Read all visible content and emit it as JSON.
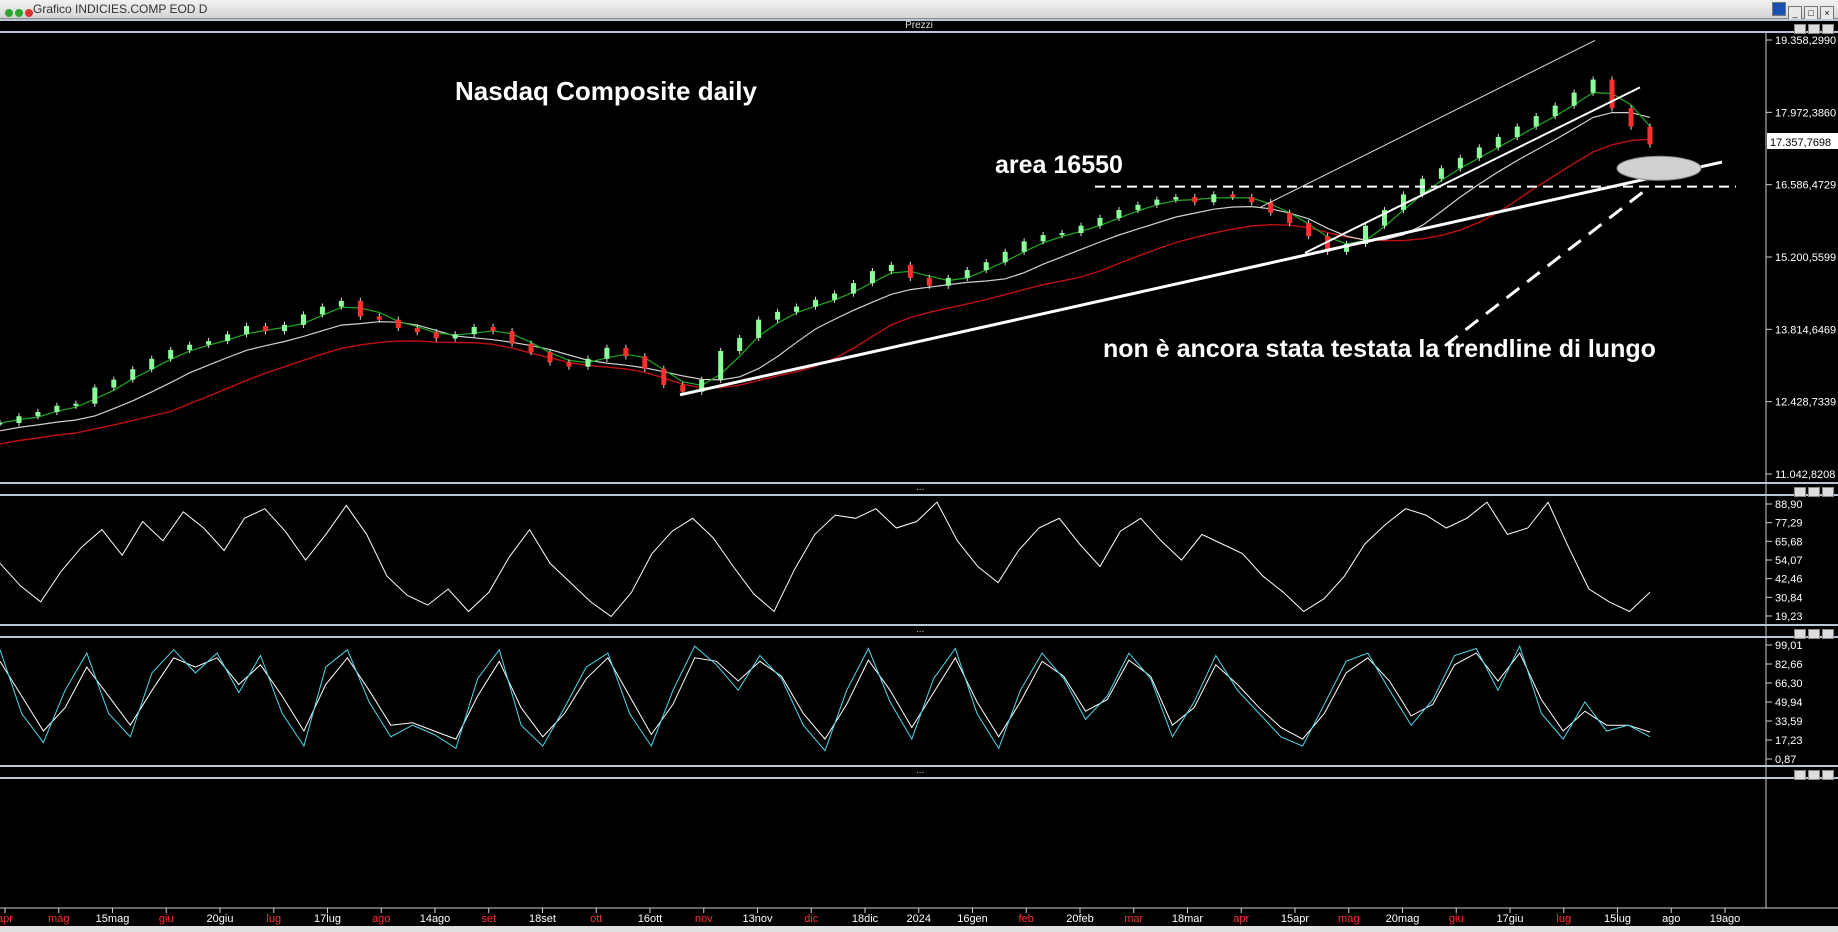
{
  "window": {
    "title": "Grafico INDICIES.COMP EOD D",
    "price_pane_label": "Prezzi"
  },
  "chart_data": [
    {
      "type": "candlestick",
      "title": "Nasdaq Composite daily",
      "y_ticks": [
        "19.358,2990",
        "17.972,3860",
        "16.586,4729",
        "15.200,5599",
        "13.814,6469",
        "12.428,7339",
        "11.042,8208"
      ],
      "ylim": [
        11042.8208,
        19358.299
      ],
      "last_price_label": "17.357,7698",
      "x_ticks": [
        {
          "label": "apr",
          "red": true
        },
        {
          "label": "mag",
          "red": true
        },
        {
          "label": "15mag",
          "red": false
        },
        {
          "label": "giu",
          "red": true
        },
        {
          "label": "20giu",
          "red": false
        },
        {
          "label": "lug",
          "red": true
        },
        {
          "label": "17lug",
          "red": false
        },
        {
          "label": "ago",
          "red": true
        },
        {
          "label": "14ago",
          "red": false
        },
        {
          "label": "set",
          "red": true
        },
        {
          "label": "18set",
          "red": false
        },
        {
          "label": "ott",
          "red": true
        },
        {
          "label": "16ott",
          "red": false
        },
        {
          "label": "nov",
          "red": true
        },
        {
          "label": "13nov",
          "red": false
        },
        {
          "label": "dic",
          "red": true
        },
        {
          "label": "18dic",
          "red": false
        },
        {
          "label": "2024",
          "red": false
        },
        {
          "label": "16gen",
          "red": false
        },
        {
          "label": "feb",
          "red": true
        },
        {
          "label": "20feb",
          "red": false
        },
        {
          "label": "mar",
          "red": true
        },
        {
          "label": "18mar",
          "red": false
        },
        {
          "label": "apr",
          "red": true
        },
        {
          "label": "15apr",
          "red": false
        },
        {
          "label": "mag",
          "red": true
        },
        {
          "label": "20mag",
          "red": false
        },
        {
          "label": "giu",
          "red": true
        },
        {
          "label": "17giu",
          "red": false
        },
        {
          "label": "lug",
          "red": true
        },
        {
          "label": "15lug",
          "red": false
        },
        {
          "label": "ago",
          "red": false
        },
        {
          "label": "19ago",
          "red": false
        }
      ],
      "close_series": [
        12020,
        12150,
        12230,
        12350,
        12390,
        12700,
        12850,
        13050,
        13250,
        13420,
        13520,
        13590,
        13720,
        13880,
        13780,
        13900,
        14100,
        14250,
        14360,
        14060,
        14000,
        13840,
        13760,
        13640,
        13720,
        13860,
        13780,
        13540,
        13380,
        13180,
        13100,
        13250,
        13460,
        13300,
        13060,
        12750,
        12620,
        12850,
        13400,
        13650,
        14000,
        14150,
        14250,
        14380,
        14500,
        14700,
        14930,
        15050,
        14800,
        14650,
        14800,
        14950,
        15100,
        15300,
        15500,
        15620,
        15660,
        15800,
        15950,
        16100,
        16200,
        16300,
        16350,
        16250,
        16400,
        16350,
        16250,
        16050,
        15850,
        15600,
        15300,
        15450,
        15800,
        16100,
        16400,
        16700,
        16900,
        17100,
        17300,
        17500,
        17700,
        17900,
        18100,
        18350,
        18600,
        18050,
        17700,
        17357
      ],
      "annotations": [
        "area 16550",
        "non è ancora stata testata la trendline di lungo"
      ],
      "colors": {
        "bull": "#8aff9a",
        "bear": "#ff3030",
        "ma_short": "#1faa1f",
        "ma_mid": "#d0d0d0",
        "ma_long": "#c01010",
        "trendline": "#ffffff"
      }
    },
    {
      "type": "line",
      "name": "oscillator",
      "y_ticks": [
        "88,90",
        "77,29",
        "65,68",
        "54,07",
        "42,46",
        "30,84",
        "19,23"
      ],
      "ylim": [
        19.23,
        88.9
      ],
      "values": [
        52,
        38,
        28,
        47,
        62,
        73,
        57,
        78,
        66,
        84,
        74,
        60,
        80,
        86,
        72,
        54,
        70,
        88,
        70,
        44,
        32,
        26,
        36,
        22,
        34,
        56,
        73,
        52,
        40,
        28,
        19,
        34,
        58,
        72,
        80,
        68,
        50,
        33,
        22,
        48,
        70,
        82,
        80,
        86,
        74,
        78,
        90,
        66,
        50,
        40,
        60,
        74,
        80,
        64,
        50,
        72,
        80,
        66,
        54,
        70,
        64,
        58,
        44,
        34,
        22,
        30,
        44,
        64,
        76,
        86,
        82,
        74,
        80,
        90,
        70,
        74,
        90,
        62,
        36,
        28,
        22,
        34
      ]
    },
    {
      "type": "line",
      "name": "stochastic",
      "y_ticks": [
        "99,01",
        "82,66",
        "66,30",
        "49,94",
        "33,59",
        "17,23",
        "0,87"
      ],
      "ylim": [
        0.87,
        99.01
      ],
      "k_values": [
        95,
        40,
        15,
        60,
        92,
        40,
        20,
        75,
        95,
        75,
        92,
        58,
        90,
        40,
        12,
        80,
        95,
        50,
        20,
        30,
        22,
        10,
        70,
        95,
        30,
        12,
        45,
        80,
        92,
        40,
        12,
        60,
        98,
        82,
        60,
        90,
        70,
        30,
        8,
        60,
        96,
        50,
        18,
        70,
        96,
        40,
        10,
        60,
        92,
        70,
        35,
        55,
        92,
        70,
        20,
        50,
        90,
        60,
        40,
        20,
        12,
        48,
        85,
        92,
        60,
        30,
        52,
        90,
        96,
        60,
        98,
        40,
        18,
        50,
        25,
        30,
        20
      ],
      "d_values": [
        85,
        55,
        25,
        45,
        80,
        55,
        30,
        60,
        88,
        80,
        88,
        65,
        82,
        55,
        25,
        65,
        88,
        60,
        30,
        32,
        25,
        18,
        55,
        85,
        45,
        20,
        40,
        70,
        88,
        55,
        22,
        48,
        88,
        85,
        68,
        85,
        72,
        40,
        18,
        48,
        86,
        60,
        28,
        58,
        88,
        50,
        20,
        50,
        85,
        72,
        42,
        52,
        86,
        72,
        30,
        45,
        82,
        65,
        45,
        28,
        18,
        40,
        75,
        88,
        68,
        38,
        48,
        82,
        92,
        68,
        92,
        52,
        25,
        42,
        30,
        30,
        24
      ]
    }
  ]
}
